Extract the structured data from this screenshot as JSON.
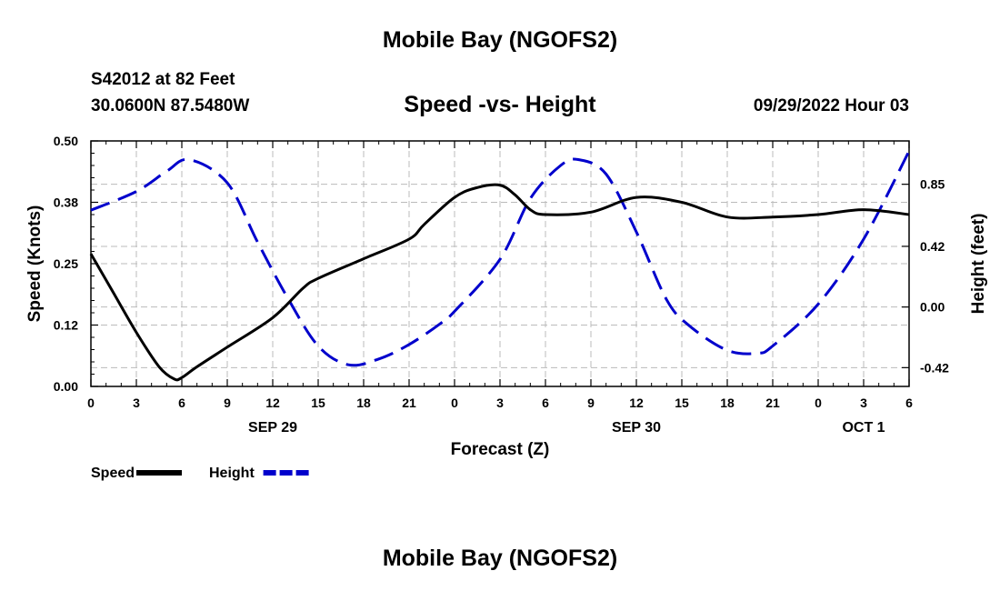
{
  "header": {
    "title": "Mobile Bay (NGOFS2)",
    "station": "S42012 at 82 Feet",
    "coordinates": "30.0600N  87.5480W",
    "chart_title": "Speed -vs- Height",
    "datetime": "09/29/2022 Hour 03"
  },
  "footer": {
    "title": "Mobile Bay (NGOFS2)"
  },
  "chart_data": {
    "type": "line",
    "xlabel": "Forecast (Z)",
    "ylabel_left": "Speed (Knots)",
    "ylabel_right": "Height (feet)",
    "x_range_hours": [
      0,
      54
    ],
    "x_ticks": [
      {
        "hour": 0,
        "label": "0"
      },
      {
        "hour": 3,
        "label": "3"
      },
      {
        "hour": 6,
        "label": "6"
      },
      {
        "hour": 9,
        "label": "9"
      },
      {
        "hour": 12,
        "label": "12"
      },
      {
        "hour": 15,
        "label": "15"
      },
      {
        "hour": 18,
        "label": "18"
      },
      {
        "hour": 21,
        "label": "21"
      },
      {
        "hour": 24,
        "label": "0"
      },
      {
        "hour": 27,
        "label": "3"
      },
      {
        "hour": 30,
        "label": "6"
      },
      {
        "hour": 33,
        "label": "9"
      },
      {
        "hour": 36,
        "label": "12"
      },
      {
        "hour": 39,
        "label": "15"
      },
      {
        "hour": 42,
        "label": "18"
      },
      {
        "hour": 45,
        "label": "21"
      },
      {
        "hour": 48,
        "label": "0"
      },
      {
        "hour": 51,
        "label": "3"
      },
      {
        "hour": 54,
        "label": "6"
      }
    ],
    "date_labels": [
      {
        "hour": 12,
        "label": "SEP 29"
      },
      {
        "hour": 36,
        "label": "SEP 30"
      },
      {
        "hour": 51,
        "label": "OCT 1"
      }
    ],
    "y_left": {
      "range": [
        0,
        0.5
      ],
      "ticks": [
        0.0,
        0.125,
        0.25,
        0.375,
        0.5
      ],
      "tick_labels": [
        "0.00",
        "0.12",
        "0.25",
        "0.38",
        "0.50"
      ]
    },
    "y_right": {
      "range": [
        -0.55,
        1.15
      ],
      "ticks": [
        -0.42,
        0.0,
        0.42,
        0.85
      ],
      "tick_labels": [
        "-0.42",
        "0.00",
        "0.42",
        "0.85"
      ]
    },
    "grid": true,
    "legend_position": "bottom-left",
    "series": [
      {
        "name": "Speed",
        "axis": "left",
        "color": "#000000",
        "style": "solid",
        "hours": [
          0,
          1.5,
          3,
          4.5,
          5.5,
          6,
          7,
          9,
          12,
          14,
          15,
          18,
          21,
          22,
          24,
          25.5,
          27,
          28,
          29,
          30,
          33,
          36,
          39,
          42,
          45,
          48,
          51,
          54
        ],
        "values": [
          0.27,
          0.19,
          0.11,
          0.04,
          0.015,
          0.018,
          0.04,
          0.08,
          0.14,
          0.2,
          0.22,
          0.26,
          0.3,
          0.33,
          0.385,
          0.405,
          0.41,
          0.39,
          0.36,
          0.35,
          0.355,
          0.385,
          0.375,
          0.345,
          0.345,
          0.35,
          0.36,
          0.35
        ]
      },
      {
        "name": "Height",
        "axis": "right",
        "color": "#0000cc",
        "style": "dashed",
        "hours": [
          0,
          3,
          5,
          6.5,
          9,
          11,
          13,
          15,
          17,
          19,
          21,
          23,
          24,
          27,
          29,
          31,
          32.2,
          34,
          36,
          38,
          39.5,
          42,
          44,
          45,
          48,
          51,
          54
        ],
        "values": [
          0.67,
          0.8,
          0.94,
          1.02,
          0.86,
          0.45,
          0.06,
          -0.27,
          -0.4,
          -0.36,
          -0.26,
          -0.12,
          -0.03,
          0.33,
          0.75,
          0.98,
          1.02,
          0.92,
          0.52,
          0.05,
          -0.13,
          -0.3,
          -0.32,
          -0.27,
          0.02,
          0.47,
          1.08
        ]
      }
    ]
  }
}
